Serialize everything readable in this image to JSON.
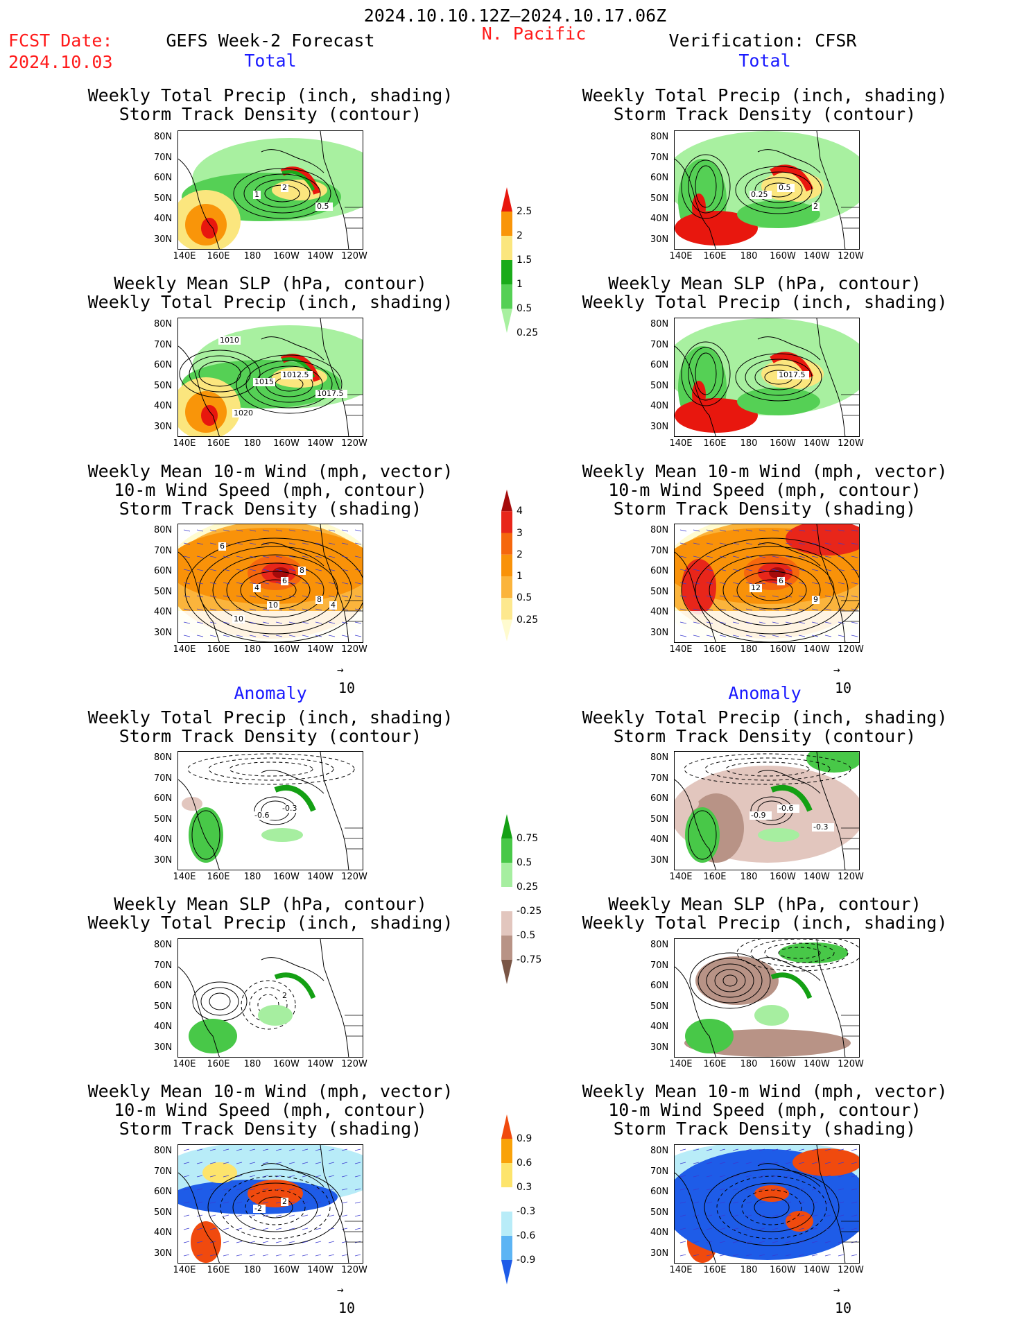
{
  "header": {
    "date_range": "2024.10.10.12Z–2024.10.17.06Z",
    "fcst_label": "FCST Date:",
    "fcst_date": "2024.10.03",
    "left_title": "GEFS Week-2 Forecast",
    "region": "N. Pacific",
    "right_title": "Verification: CFSR"
  },
  "sections": {
    "total": "Total",
    "anomaly": "Anomaly"
  },
  "panel_titles": {
    "precip_track": "Weekly Total Precip (inch, shading)\nStorm Track Density (contour)",
    "slp_precip": "Weekly Mean SLP (hPa, contour)\nWeekly Total Precip (inch, shading)",
    "wind_track": "Weekly Mean 10-m Wind (mph, vector)\n10-m Wind Speed (mph, contour)\nStorm Track Density (shading)"
  },
  "axes": {
    "lat_ticks": [
      "80N",
      "70N",
      "60N",
      "50N",
      "40N",
      "30N"
    ],
    "lon_ticks": [
      "140E",
      "160E",
      "180",
      "160W",
      "140W",
      "120W"
    ],
    "vector_scale": "10"
  },
  "contour_labels": {
    "fc_total_precip": [
      "2",
      "1",
      "0.5"
    ],
    "vf_total_precip": [
      "0.5",
      "0.25",
      "2"
    ],
    "fc_total_slp": [
      "1012.5",
      "1015",
      "1017.5",
      "1020",
      "1010"
    ],
    "vf_total_slp": [
      "1017.5"
    ],
    "fc_total_wind": [
      "6",
      "4",
      "8",
      "10",
      "6",
      "10",
      "8",
      "4"
    ],
    "vf_total_wind": [
      "6",
      "12",
      "9"
    ],
    "fc_anom_precip": [
      "-0.3",
      "-0.6"
    ],
    "vf_anom_precip": [
      "-0.6",
      "-0.9",
      "-0.3"
    ],
    "fc_anom_slp": [
      "2"
    ],
    "fc_anom_wind": [
      "2",
      "-2"
    ]
  },
  "colorbars": {
    "total_precip": {
      "labels": [
        "2.5",
        "2",
        "1.5",
        "1",
        "0.5",
        "0.25"
      ],
      "colors": [
        "#e8170e",
        "#f99509",
        "#fbe67e",
        "#1aab1a",
        "#55d055",
        "#a8f0a0"
      ]
    },
    "total_track": {
      "labels": [
        "4",
        "3",
        "2",
        "1",
        "0.5",
        "0.25"
      ],
      "colors": [
        "#a50b0b",
        "#e8261a",
        "#f5670e",
        "#f99209",
        "#fbb43c",
        "#fde88e",
        "#fffbcf"
      ]
    },
    "anom_precip": {
      "labels": [
        "0.75",
        "0.5",
        "0.25",
        "-0.25",
        "-0.5",
        "-0.75"
      ],
      "colors": [
        "#14a014",
        "#48c848",
        "#a6eea0",
        "#ffffff",
        "#e2c6be",
        "#b89386",
        "#7a5646"
      ]
    },
    "anom_track": {
      "labels": [
        "0.9",
        "0.6",
        "0.3",
        "-0.3",
        "-0.6",
        "-0.9"
      ],
      "colors": [
        "#f04a0e",
        "#f9a20a",
        "#fde46c",
        "#ffffff",
        "#b8ecf8",
        "#5cb4f4",
        "#1e5ce8"
      ]
    }
  }
}
